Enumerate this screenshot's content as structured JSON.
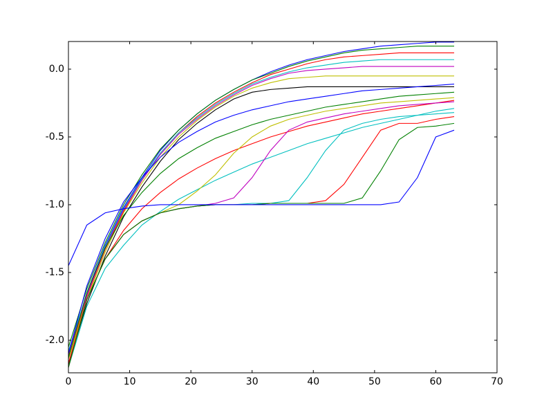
{
  "chart_data": {
    "type": "line",
    "x": [
      0,
      3,
      6,
      9,
      12,
      15,
      18,
      21,
      24,
      27,
      30,
      33,
      36,
      39,
      42,
      45,
      48,
      51,
      54,
      57,
      60,
      63
    ],
    "xlim": [
      0,
      70
    ],
    "xticks": [
      0,
      10,
      20,
      30,
      40,
      50,
      60,
      70
    ],
    "ylim": [
      -2.24,
      0.204
    ],
    "yticks": [
      {
        "value": -2,
        "label": "-2.0"
      },
      {
        "value": -1.5,
        "label": "-1.5"
      },
      {
        "value": -1,
        "label": "-1.0"
      },
      {
        "value": -0.5,
        "label": "-0.5"
      },
      {
        "value": 0,
        "label": "0.0"
      }
    ],
    "grid": false,
    "series": [
      {
        "color": "#0000ff",
        "values": [
          -2.1,
          -1.65,
          -1.3,
          -1.02,
          -0.8,
          -0.6,
          -0.45,
          -0.33,
          -0.23,
          -0.15,
          -0.08,
          -0.02,
          0.03,
          0.07,
          0.1,
          0.13,
          0.15,
          0.17,
          0.18,
          0.19,
          0.2,
          0.2
        ]
      },
      {
        "color": "#008000",
        "values": [
          -2.05,
          -1.62,
          -1.28,
          -1.0,
          -0.78,
          -0.59,
          -0.45,
          -0.33,
          -0.23,
          -0.15,
          -0.08,
          -0.03,
          0.02,
          0.06,
          0.09,
          0.12,
          0.14,
          0.15,
          0.16,
          0.17,
          0.17,
          0.17
        ]
      },
      {
        "color": "#ff0000",
        "values": [
          -2.12,
          -1.68,
          -1.33,
          -1.05,
          -0.82,
          -0.62,
          -0.47,
          -0.35,
          -0.25,
          -0.17,
          -0.1,
          -0.04,
          0.0,
          0.04,
          0.07,
          0.09,
          0.1,
          0.11,
          0.12,
          0.12,
          0.12,
          0.12
        ]
      },
      {
        "color": "#00bfbf",
        "values": [
          -2.08,
          -1.66,
          -1.31,
          -1.03,
          -0.81,
          -0.62,
          -0.47,
          -0.36,
          -0.26,
          -0.18,
          -0.11,
          -0.06,
          -0.02,
          0.01,
          0.03,
          0.05,
          0.06,
          0.07,
          0.07,
          0.07,
          0.07,
          0.07
        ]
      },
      {
        "color": "#bf00bf",
        "values": [
          -2.1,
          -1.67,
          -1.32,
          -1.04,
          -0.82,
          -0.63,
          -0.48,
          -0.37,
          -0.27,
          -0.19,
          -0.12,
          -0.07,
          -0.03,
          -0.01,
          0.0,
          0.01,
          0.02,
          0.02,
          0.02,
          0.02,
          0.02,
          0.02
        ]
      },
      {
        "color": "#bfbf00",
        "values": [
          -2.14,
          -1.7,
          -1.35,
          -1.06,
          -0.84,
          -0.65,
          -0.5,
          -0.38,
          -0.28,
          -0.2,
          -0.14,
          -0.1,
          -0.07,
          -0.06,
          -0.05,
          -0.05,
          -0.05,
          -0.05,
          -0.05,
          -0.05,
          -0.05,
          -0.05
        ]
      },
      {
        "color": "#000000",
        "values": [
          -2.18,
          -1.73,
          -1.38,
          -1.09,
          -0.87,
          -0.68,
          -0.52,
          -0.4,
          -0.3,
          -0.22,
          -0.17,
          -0.15,
          -0.14,
          -0.13,
          -0.13,
          -0.13,
          -0.13,
          -0.13,
          -0.13,
          -0.13,
          -0.13,
          -0.13
        ]
      },
      {
        "color": "#0000ff",
        "values": [
          -2.1,
          -1.6,
          -1.25,
          -0.98,
          -0.8,
          -0.65,
          -0.54,
          -0.46,
          -0.39,
          -0.34,
          -0.3,
          -0.27,
          -0.24,
          -0.22,
          -0.2,
          -0.18,
          -0.16,
          -0.15,
          -0.14,
          -0.13,
          -0.12,
          -0.11
        ]
      },
      {
        "color": "#008000",
        "values": [
          -2.13,
          -1.65,
          -1.32,
          -1.08,
          -0.91,
          -0.77,
          -0.66,
          -0.58,
          -0.51,
          -0.46,
          -0.41,
          -0.37,
          -0.34,
          -0.31,
          -0.28,
          -0.26,
          -0.24,
          -0.22,
          -0.2,
          -0.19,
          -0.18,
          -0.17
        ]
      },
      {
        "color": "#ff0000",
        "values": [
          -2.17,
          -1.7,
          -1.4,
          -1.19,
          -1.03,
          -0.91,
          -0.81,
          -0.73,
          -0.66,
          -0.6,
          -0.55,
          -0.5,
          -0.46,
          -0.42,
          -0.39,
          -0.36,
          -0.33,
          -0.31,
          -0.29,
          -0.27,
          -0.25,
          -0.23
        ]
      },
      {
        "color": "#00bfbf",
        "values": [
          -2.2,
          -1.75,
          -1.47,
          -1.3,
          -1.15,
          -1.05,
          -0.96,
          -0.89,
          -0.82,
          -0.76,
          -0.7,
          -0.65,
          -0.6,
          -0.55,
          -0.51,
          -0.47,
          -0.43,
          -0.4,
          -0.37,
          -0.34,
          -0.31,
          -0.29
        ]
      },
      {
        "color": "#bfbf00",
        "values": [
          -2.2,
          -1.7,
          -1.4,
          -1.22,
          -1.12,
          -1.06,
          -1.0,
          -0.9,
          -0.78,
          -0.62,
          -0.5,
          -0.42,
          -0.37,
          -0.34,
          -0.31,
          -0.29,
          -0.27,
          -0.25,
          -0.24,
          -0.23,
          -0.22,
          -0.21
        ]
      },
      {
        "color": "#bf00bf",
        "values": [
          -2.2,
          -1.7,
          -1.4,
          -1.22,
          -1.12,
          -1.06,
          -1.03,
          -1.01,
          -0.99,
          -0.95,
          -0.8,
          -0.6,
          -0.45,
          -0.39,
          -0.36,
          -0.33,
          -0.31,
          -0.29,
          -0.27,
          -0.26,
          -0.25,
          -0.24
        ]
      },
      {
        "color": "#00bfbf",
        "values": [
          -2.2,
          -1.7,
          -1.4,
          -1.22,
          -1.12,
          -1.06,
          -1.03,
          -1.01,
          -1.0,
          -1.0,
          -0.99,
          -0.99,
          -0.97,
          -0.8,
          -0.6,
          -0.45,
          -0.4,
          -0.37,
          -0.35,
          -0.34,
          -0.33,
          -0.32
        ]
      },
      {
        "color": "#ff0000",
        "values": [
          -2.2,
          -1.7,
          -1.4,
          -1.22,
          -1.12,
          -1.06,
          -1.03,
          -1.01,
          -1.0,
          -1.0,
          -1.0,
          -0.99,
          -0.99,
          -0.99,
          -0.97,
          -0.85,
          -0.65,
          -0.45,
          -0.4,
          -0.4,
          -0.37,
          -0.35
        ]
      },
      {
        "color": "#008000",
        "values": [
          -2.2,
          -1.7,
          -1.4,
          -1.22,
          -1.12,
          -1.06,
          -1.03,
          -1.01,
          -1.0,
          -1.0,
          -1.0,
          -0.99,
          -0.99,
          -0.99,
          -0.99,
          -0.99,
          -0.95,
          -0.75,
          -0.52,
          -0.43,
          -0.42,
          -0.4
        ]
      },
      {
        "color": "#0000ff",
        "values": [
          -1.45,
          -1.15,
          -1.06,
          -1.03,
          -1.01,
          -1.0,
          -1.0,
          -1.0,
          -1.0,
          -1.0,
          -1.0,
          -1.0,
          -1.0,
          -1.0,
          -1.0,
          -1.0,
          -1.0,
          -1.0,
          -0.98,
          -0.8,
          -0.5,
          -0.45
        ]
      }
    ]
  }
}
